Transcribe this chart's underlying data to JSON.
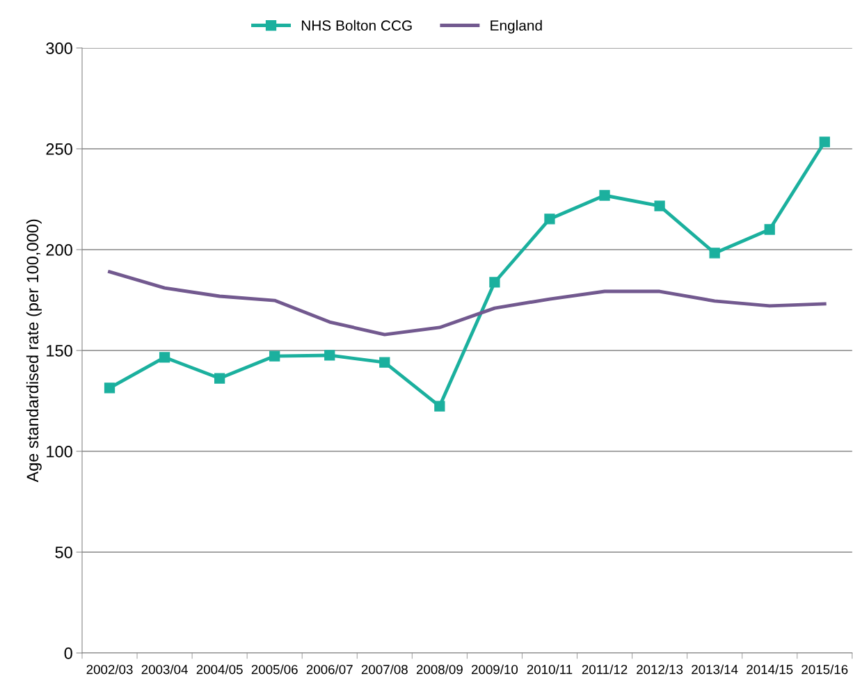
{
  "chart_data": {
    "type": "line",
    "ylabel": "Age standardised rate (per 100,000)",
    "categories": [
      "2002/03",
      "2003/04",
      "2004/05",
      "2005/06",
      "2006/07",
      "2007/08",
      "2008/09",
      "2009/10",
      "2010/11",
      "2011/12",
      "2012/13",
      "2013/14",
      "2014/15",
      "2015/16"
    ],
    "series": [
      {
        "name": "NHS Bolton CCG",
        "color": "#1bb09e",
        "marker": "square",
        "values": [
          131.4,
          146.6,
          136.2,
          147.2,
          147.6,
          144.1,
          122.4,
          183.8,
          215.2,
          226.9,
          221.7,
          198.3,
          210.0,
          253.4
        ]
      },
      {
        "name": "England",
        "color": "#72598f",
        "marker": "none",
        "values": [
          189.0,
          181.0,
          176.9,
          174.8,
          164.1,
          157.9,
          161.4,
          171.0,
          175.5,
          179.3,
          179.3,
          174.5,
          172.1,
          173.1
        ]
      }
    ],
    "ylim": [
      0,
      300
    ],
    "yticks": [
      0,
      50,
      100,
      150,
      200,
      250,
      300
    ],
    "grid": "y",
    "legend": "top",
    "line_style": "solid"
  }
}
